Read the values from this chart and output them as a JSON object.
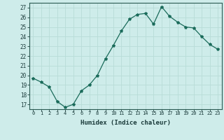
{
  "x": [
    0,
    1,
    2,
    3,
    4,
    5,
    6,
    7,
    8,
    9,
    10,
    11,
    12,
    13,
    14,
    15,
    16,
    17,
    18,
    19,
    20,
    21,
    22,
    23
  ],
  "y": [
    19.7,
    19.3,
    18.8,
    17.3,
    16.7,
    17.0,
    18.4,
    19.0,
    20.0,
    21.7,
    23.1,
    24.6,
    25.8,
    26.3,
    26.4,
    25.3,
    27.1,
    26.1,
    25.5,
    25.0,
    24.9,
    24.0,
    23.2,
    22.7
  ],
  "line_color": "#1a6b5a",
  "marker": "*",
  "marker_size": 3,
  "bg_color": "#ceecea",
  "grid_color": "#b8dcd8",
  "xlabel": "Humidex (Indice chaleur)",
  "ylabel_ticks": [
    17,
    18,
    19,
    20,
    21,
    22,
    23,
    24,
    25,
    26,
    27
  ],
  "ylim": [
    16.5,
    27.5
  ],
  "xlim": [
    -0.5,
    23.5
  ]
}
